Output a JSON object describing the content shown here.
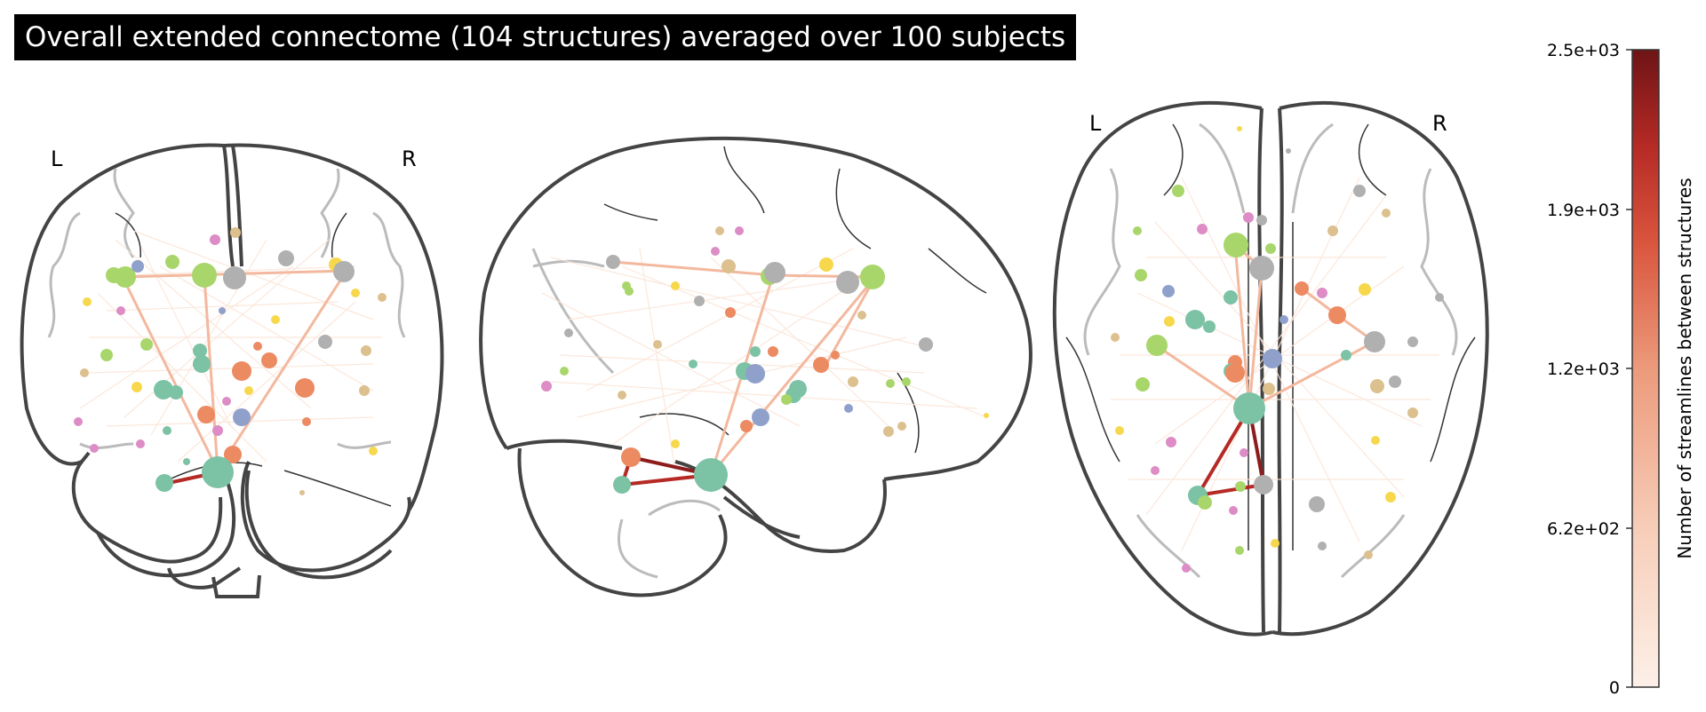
{
  "title": "Overall extended connectome (104 structures) averaged over 100 subjects",
  "views": {
    "coronal": {
      "left_label": "L",
      "right_label": "R"
    },
    "sagittal": {},
    "axial": {
      "left_label": "L",
      "right_label": "R"
    }
  },
  "colorbar": {
    "label": "Number of streamlines between structures",
    "colors": [
      "#fdf0e8",
      "#f7cdb8",
      "#ec9a7b",
      "#d9543d",
      "#b52a25",
      "#6e1416"
    ],
    "ticks": [
      "2.5e+03",
      "1.9e+03",
      "1.2e+03",
      "6.2e+02",
      "0"
    ]
  },
  "node_palette": {
    "green": "#a8d66a",
    "gray": "#b0b0b0",
    "teal": "#7cc2a5",
    "orange": "#ec8a62",
    "purple": "#8fa0cb",
    "pink": "#dd8cc5",
    "yellow": "#f7d84c",
    "tan": "#dcc08e"
  }
}
